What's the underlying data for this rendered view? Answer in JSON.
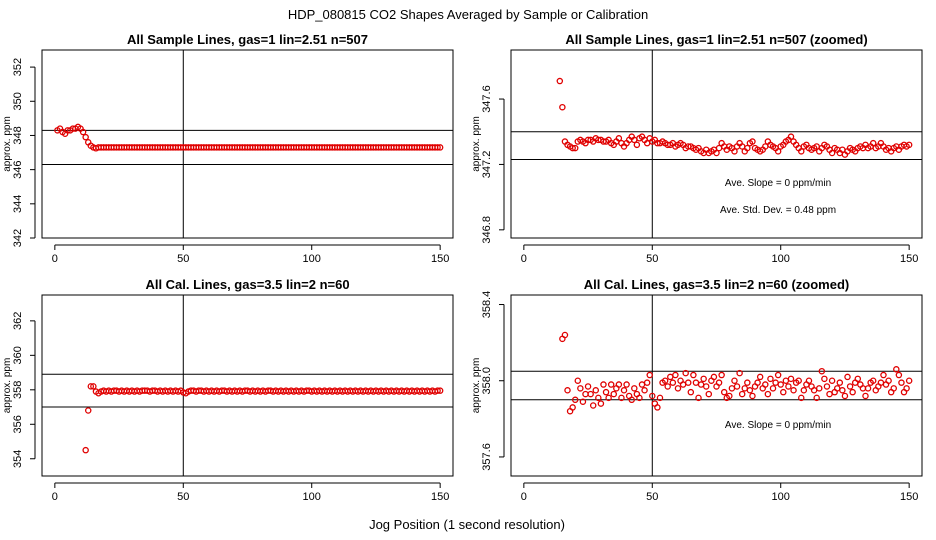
{
  "page": {
    "title": "HDP_080815  CO2 Shapes Averaged by Sample or Calibration",
    "xlabel": "Jog Position (1 second resolution)"
  },
  "colors": {
    "points": "#e00000",
    "lines": "#000000"
  },
  "chart_data": [
    {
      "type": "scatter",
      "title": "All Sample Lines, gas=1 lin=2.51 n=507",
      "ylabel": "approx. ppm",
      "xlim": [
        -5,
        155
      ],
      "ylim": [
        342,
        353
      ],
      "xticks": [
        0,
        50,
        100,
        150
      ],
      "xtick_labels": [
        "0",
        "50",
        "100",
        "150"
      ],
      "yticks": [
        342,
        344,
        346,
        348,
        350,
        352
      ],
      "ytick_labels": [
        "342",
        "344",
        "346",
        "348",
        "350",
        "352"
      ],
      "hlines": [
        346.3,
        348.3
      ],
      "vline": 50,
      "annotations": [],
      "series": [
        {
          "x_start": 1,
          "x_end": 150,
          "y": [
            348.3,
            348.4,
            348.2,
            348.1,
            348.3,
            348.3,
            348.4,
            348.4,
            348.5,
            348.4,
            348.2,
            347.9,
            347.6,
            347.4,
            347.3,
            347.25,
            347.3,
            347.3,
            347.3,
            347.3,
            347.3,
            347.3,
            347.3,
            347.3,
            347.3,
            347.3,
            347.3,
            347.3,
            347.3,
            347.3,
            347.3,
            347.3,
            347.3,
            347.3,
            347.3,
            347.3,
            347.3,
            347.3,
            347.3,
            347.3,
            347.3,
            347.3,
            347.3,
            347.3,
            347.3,
            347.3,
            347.3,
            347.3,
            347.3,
            347.3,
            347.3,
            347.3,
            347.3,
            347.3,
            347.3,
            347.3,
            347.3,
            347.3,
            347.3,
            347.3,
            347.3,
            347.3,
            347.3,
            347.3,
            347.3,
            347.3,
            347.3,
            347.3,
            347.3,
            347.3,
            347.3,
            347.3,
            347.3,
            347.3,
            347.3,
            347.3,
            347.3,
            347.3,
            347.3,
            347.3,
            347.3,
            347.3,
            347.3,
            347.3,
            347.3,
            347.3,
            347.3,
            347.3,
            347.3,
            347.3,
            347.3,
            347.3,
            347.3,
            347.3,
            347.3,
            347.3,
            347.3,
            347.3,
            347.3,
            347.3,
            347.3,
            347.3,
            347.3,
            347.3,
            347.3,
            347.3,
            347.3,
            347.3,
            347.3,
            347.3,
            347.3,
            347.3,
            347.3,
            347.3,
            347.3,
            347.3,
            347.3,
            347.3,
            347.3,
            347.3,
            347.3,
            347.3,
            347.3,
            347.3,
            347.3,
            347.3,
            347.3,
            347.3,
            347.3,
            347.3,
            347.3,
            347.3,
            347.3,
            347.3,
            347.3,
            347.3,
            347.3,
            347.3,
            347.3,
            347.3,
            347.3,
            347.3,
            347.3,
            347.3,
            347.3,
            347.3,
            347.3,
            347.3,
            347.3,
            347.3
          ]
        }
      ]
    },
    {
      "type": "scatter",
      "title": "All Sample Lines, gas=1 lin=2.51 n=507 (zoomed)",
      "ylabel": "approx. ppm",
      "xlim": [
        -5,
        155
      ],
      "ylim": [
        346.75,
        347.9
      ],
      "xticks": [
        0,
        50,
        100,
        150
      ],
      "xtick_labels": [
        "0",
        "50",
        "100",
        "150"
      ],
      "yticks": [
        346.8,
        347.2,
        347.6
      ],
      "ytick_labels": [
        "346.8",
        "347.2",
        "347.6"
      ],
      "hlines": [
        347.23,
        347.4
      ],
      "vline": 50,
      "annotations": [
        "Ave. Slope =  0  ppm/min",
        "Ave. Std. Dev. =  0.48  ppm"
      ],
      "series": [
        {
          "x_start": 14,
          "x_end": 150,
          "y": [
            347.71,
            347.55,
            347.34,
            347.32,
            347.31,
            347.3,
            347.3,
            347.34,
            347.35,
            347.34,
            347.33,
            347.35,
            347.35,
            347.34,
            347.36,
            347.35,
            347.35,
            347.34,
            347.34,
            347.35,
            347.33,
            347.32,
            347.34,
            347.36,
            347.33,
            347.31,
            347.33,
            347.35,
            347.37,
            347.35,
            347.32,
            347.36,
            347.37,
            347.35,
            347.33,
            347.36,
            347.34,
            347.35,
            347.33,
            347.33,
            347.34,
            347.33,
            347.32,
            347.32,
            347.33,
            347.31,
            347.32,
            347.33,
            347.32,
            347.3,
            347.31,
            347.31,
            347.3,
            347.29,
            347.3,
            347.28,
            347.27,
            347.29,
            347.27,
            347.28,
            347.29,
            347.27,
            347.3,
            347.33,
            347.31,
            347.29,
            347.31,
            347.3,
            347.28,
            347.31,
            347.33,
            347.31,
            347.28,
            347.3,
            347.33,
            347.34,
            347.3,
            347.29,
            347.28,
            347.29,
            347.31,
            347.34,
            347.32,
            347.31,
            347.3,
            347.28,
            347.31,
            347.32,
            347.34,
            347.35,
            347.37,
            347.34,
            347.32,
            347.3,
            347.28,
            347.31,
            347.32,
            347.3,
            347.29,
            347.3,
            347.31,
            347.28,
            347.3,
            347.32,
            347.31,
            347.29,
            347.27,
            347.3,
            347.29,
            347.27,
            347.29,
            347.26,
            347.28,
            347.3,
            347.29,
            347.28,
            347.3,
            347.31,
            347.3,
            347.32,
            347.3,
            347.31,
            347.33,
            347.3,
            347.31,
            347.33,
            347.31,
            347.29,
            347.3,
            347.28,
            347.3,
            347.31,
            347.29,
            347.31,
            347.32,
            347.31,
            347.32
          ]
        }
      ]
    },
    {
      "type": "scatter",
      "title": "All Cal. Lines, gas=3.5 lin=2 n=60",
      "ylabel": "approx. ppm",
      "xlim": [
        -5,
        155
      ],
      "ylim": [
        353,
        363.5
      ],
      "xticks": [
        0,
        50,
        100,
        150
      ],
      "xtick_labels": [
        "0",
        "50",
        "100",
        "150"
      ],
      "yticks": [
        354,
        356,
        358,
        360,
        362
      ],
      "ytick_labels": [
        "354",
        "356",
        "358",
        "360",
        "362"
      ],
      "hlines": [
        357.0,
        358.9
      ],
      "vline": 50,
      "annotations": [],
      "series": [
        {
          "x_start": 12,
          "x_end": 150,
          "y": [
            354.5,
            356.8,
            358.2,
            358.2,
            357.9,
            357.8,
            357.9,
            357.95,
            357.9,
            357.95,
            357.9,
            357.95,
            357.95,
            357.9,
            357.95,
            357.9,
            357.95,
            357.9,
            357.95,
            357.9,
            357.95,
            357.9,
            357.95,
            357.95,
            357.95,
            357.9,
            357.95,
            357.95,
            357.9,
            357.95,
            357.9,
            357.95,
            357.9,
            357.95,
            357.9,
            357.95,
            357.9,
            357.95,
            357.85,
            357.8,
            357.9,
            357.95,
            357.95,
            357.9,
            357.95,
            357.95,
            357.9,
            357.95,
            357.9,
            357.95,
            357.9,
            357.95,
            357.9,
            357.95,
            357.95,
            357.9,
            357.95,
            357.9,
            357.95,
            357.9,
            357.95,
            357.9,
            357.95,
            357.95,
            357.9,
            357.95,
            357.9,
            357.95,
            357.9,
            357.95,
            357.9,
            357.95,
            357.95,
            357.9,
            357.95,
            357.9,
            357.95,
            357.9,
            357.95,
            357.9,
            357.95,
            357.9,
            357.95,
            357.9,
            357.95,
            357.9,
            357.95,
            357.95,
            357.9,
            357.95,
            357.9,
            357.95,
            357.9,
            357.95,
            357.9,
            357.95,
            357.9,
            357.95,
            357.9,
            357.95,
            357.9,
            357.95,
            357.9,
            357.95,
            357.9,
            357.95,
            357.9,
            357.95,
            357.9,
            357.95,
            357.9,
            357.95,
            357.9,
            357.95,
            357.9,
            357.95,
            357.9,
            357.95,
            357.9,
            357.95,
            357.9,
            357.95,
            357.9,
            357.95,
            357.9,
            357.95,
            357.9,
            357.95,
            357.9,
            357.95,
            357.9,
            357.95,
            357.9,
            357.95,
            357.9,
            357.95,
            357.9,
            357.95,
            357.95
          ]
        }
      ]
    },
    {
      "type": "scatter",
      "title": "All Cal. Lines, gas=3.5 lin=2 n=60 (zoomed)",
      "ylabel": "approx. ppm",
      "xlim": [
        -5,
        155
      ],
      "ylim": [
        357.5,
        358.45
      ],
      "xticks": [
        0,
        50,
        100,
        150
      ],
      "xtick_labels": [
        "0",
        "50",
        "100",
        "150"
      ],
      "yticks": [
        357.6,
        358.0,
        358.4
      ],
      "ytick_labels": [
        "357.6",
        "358.0",
        "358.4"
      ],
      "hlines": [
        357.9,
        358.05
      ],
      "vline": 50,
      "annotations": [
        "Ave. Slope =  0  ppm/min"
      ],
      "series": [
        {
          "x_start": 15,
          "x_end": 150,
          "y": [
            358.22,
            358.24,
            357.95,
            357.84,
            357.86,
            357.9,
            358.0,
            357.96,
            357.89,
            357.93,
            357.97,
            357.93,
            357.87,
            357.95,
            357.91,
            357.88,
            357.98,
            357.94,
            357.91,
            357.98,
            357.93,
            357.96,
            357.98,
            357.91,
            357.95,
            357.98,
            357.92,
            357.9,
            357.96,
            357.93,
            357.91,
            357.98,
            357.95,
            357.99,
            358.03,
            357.92,
            357.88,
            357.86,
            357.91,
            357.99,
            358.0,
            357.97,
            358.02,
            357.99,
            358.03,
            357.96,
            358.0,
            357.98,
            358.04,
            357.99,
            357.94,
            358.03,
            357.99,
            357.91,
            357.98,
            358.01,
            357.97,
            357.93,
            358.0,
            358.02,
            357.97,
            357.99,
            358.03,
            357.94,
            357.91,
            357.92,
            357.96,
            358.0,
            357.97,
            358.04,
            357.93,
            357.96,
            357.99,
            357.95,
            357.92,
            357.97,
            357.99,
            358.02,
            357.96,
            357.98,
            357.93,
            358.01,
            357.96,
            357.99,
            358.03,
            357.98,
            357.94,
            358.0,
            357.97,
            358.01,
            357.95,
            357.99,
            358.0,
            357.91,
            357.95,
            357.98,
            358.0,
            357.97,
            357.95,
            357.91,
            357.96,
            358.05,
            358.01,
            357.97,
            357.93,
            358.0,
            357.94,
            357.96,
            357.99,
            357.95,
            357.92,
            358.02,
            357.97,
            357.94,
            357.99,
            358.01,
            357.98,
            357.96,
            357.92,
            357.96,
            357.99,
            358.0,
            357.95,
            357.97,
            357.99,
            358.03,
            357.98,
            358.0,
            357.94,
            357.96,
            358.06,
            358.03,
            357.99,
            357.94,
            357.96,
            358.0
          ]
        }
      ]
    }
  ]
}
